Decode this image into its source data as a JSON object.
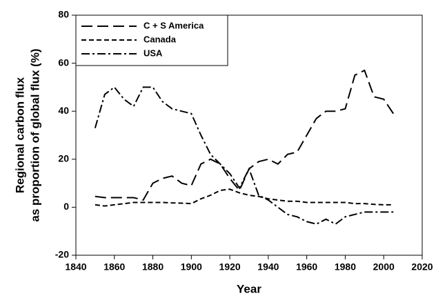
{
  "chart_data": {
    "type": "line",
    "x_label": "Year",
    "y_label": [
      "Regional carbon flux",
      "as proportion of global flux (%)"
    ],
    "x": [
      1850,
      1855,
      1860,
      1865,
      1870,
      1875,
      1880,
      1885,
      1890,
      1895,
      1900,
      1905,
      1910,
      1915,
      1920,
      1925,
      1930,
      1935,
      1940,
      1945,
      1950,
      1955,
      1960,
      1965,
      1970,
      1975,
      1980,
      1985,
      1990,
      1995,
      2000,
      2005
    ],
    "series": [
      {
        "name": "C + S America",
        "color": "#000000",
        "dash": "16,7",
        "values": [
          4.5,
          4,
          4,
          4,
          4,
          3,
          10,
          12,
          13,
          10,
          9,
          18,
          20,
          18,
          12,
          7,
          16,
          19,
          20,
          18,
          22,
          23,
          30,
          37,
          40,
          40,
          41,
          55,
          57,
          46,
          45,
          39
        ]
      },
      {
        "name": "Canada",
        "color": "#000000",
        "dash": "7,4",
        "values": [
          1,
          0.5,
          1,
          1.5,
          2,
          2,
          2,
          2,
          1.8,
          1.7,
          1.5,
          3.5,
          5,
          7,
          7.5,
          6,
          5,
          4.5,
          3.5,
          3,
          2.5,
          2.5,
          2,
          2,
          2,
          2,
          2,
          1.5,
          1.5,
          1.2,
          1,
          1
        ]
      },
      {
        "name": "USA",
        "color": "#000000",
        "dash": "12,4,3,4",
        "values": [
          33,
          47,
          50,
          45,
          42,
          50,
          50,
          44,
          41,
          40,
          39,
          30,
          22,
          18,
          14,
          8,
          16,
          5,
          3,
          0,
          -3,
          -4,
          -6,
          -7,
          -5,
          -7,
          -4,
          -3,
          -2,
          -2,
          -2,
          -2
        ]
      }
    ],
    "xlim": [
      1840,
      2020
    ],
    "xticks": [
      1840,
      1860,
      1880,
      1900,
      1920,
      1940,
      1960,
      1980,
      2000,
      2020
    ],
    "ylim": [
      -20,
      80
    ],
    "yticks": [
      -20,
      0,
      20,
      40,
      60,
      80
    ],
    "legend": "upper left"
  }
}
